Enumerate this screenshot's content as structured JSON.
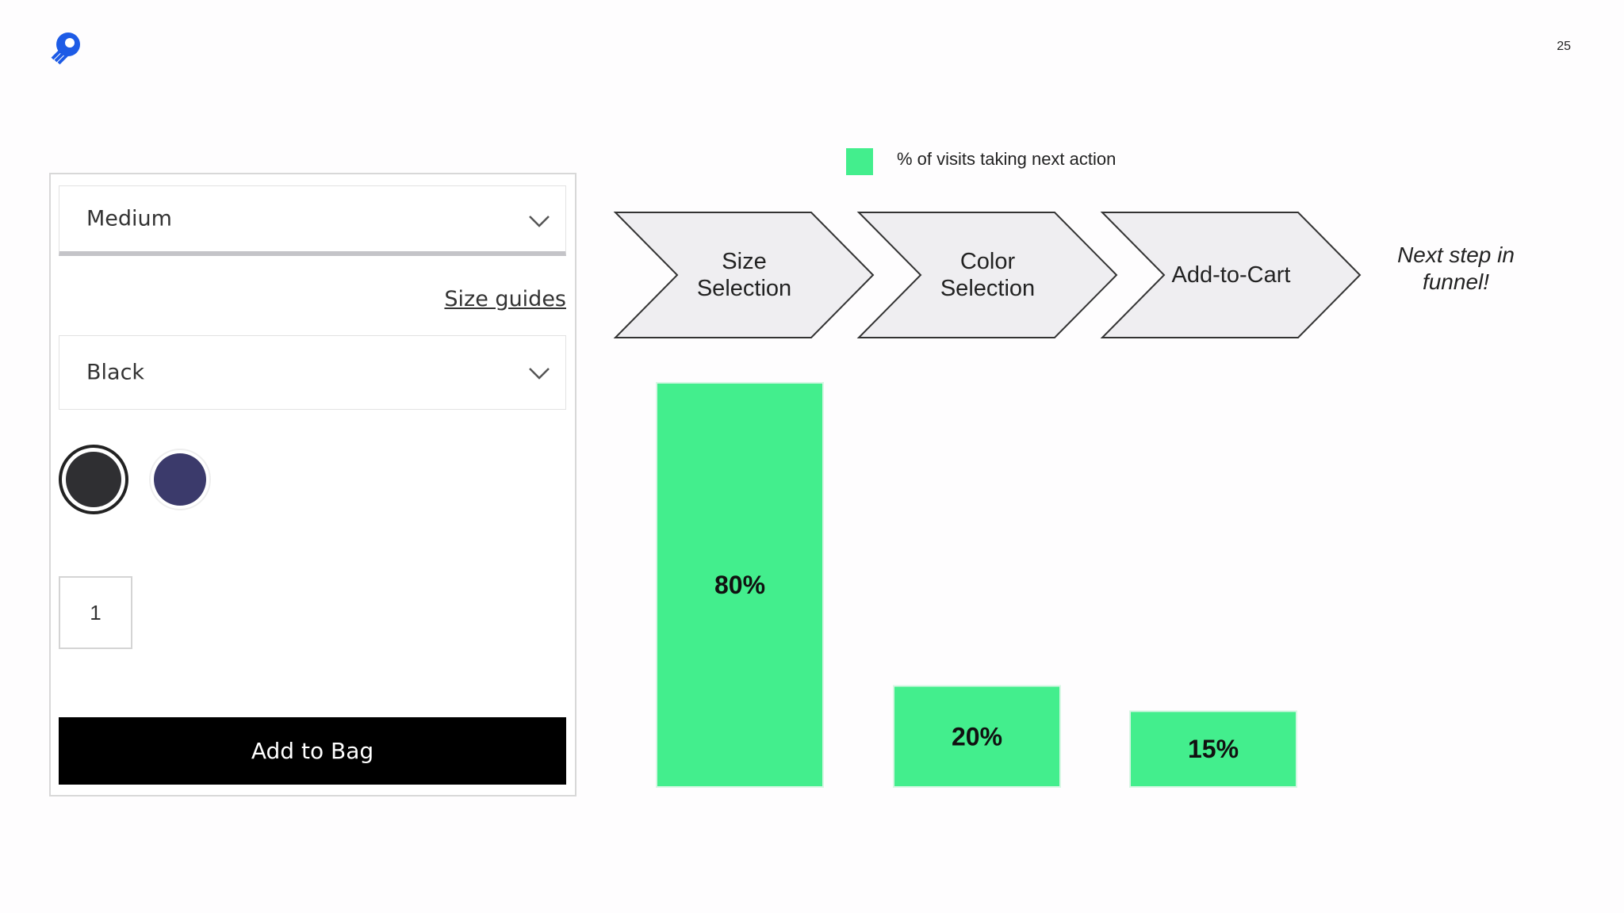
{
  "page_number": "25",
  "form": {
    "size": "Medium",
    "size_guides": "Size guides",
    "color": "Black",
    "quantity": "1",
    "button": "Add to Bag"
  },
  "chart_data": {
    "type": "bar",
    "categories": [
      "Size Selection",
      "Color Selection",
      "Add-to-Cart"
    ],
    "series": [
      {
        "name": "% of visits taking next action",
        "color": "#43ee8d",
        "values": [
          80,
          20,
          15
        ],
        "value_labels": [
          "80%",
          "20%",
          "15%"
        ]
      }
    ],
    "ylim": [
      0,
      80
    ],
    "annotation": "Next step in funnel!"
  }
}
